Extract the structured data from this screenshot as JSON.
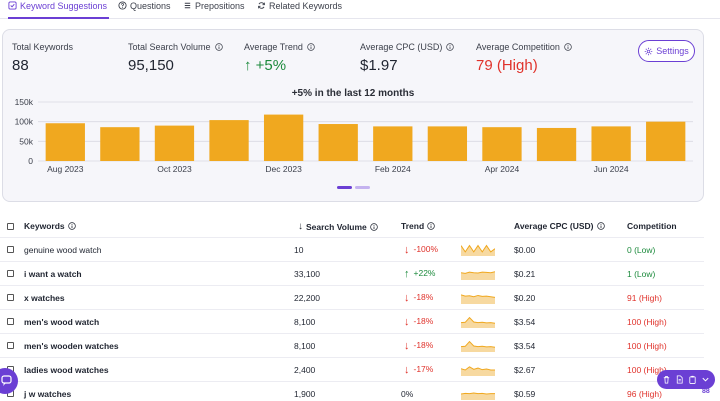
{
  "tabs": [
    {
      "label": "Keyword Suggestions",
      "icon": "checkbox-icon",
      "active": true
    },
    {
      "label": "Questions",
      "icon": "help-circle-icon",
      "active": false
    },
    {
      "label": "Prepositions",
      "icon": "list-icon",
      "active": false
    },
    {
      "label": "Related Keywords",
      "icon": "refresh-icon",
      "active": false
    }
  ],
  "summary": {
    "total_keywords": {
      "label": "Total Keywords",
      "value": "88"
    },
    "total_search_volume": {
      "label": "Total Search Volume",
      "value": "95,150"
    },
    "average_trend": {
      "label": "Average Trend",
      "value": "+5%",
      "arrow": "↑"
    },
    "average_cpc": {
      "label": "Average CPC (USD)",
      "value": "$1.97"
    },
    "average_competition": {
      "label": "Average Competition",
      "value": "79 (High)"
    },
    "settings_label": "Settings"
  },
  "colors": {
    "accent": "#6b3fd4",
    "bar": "#f0a81f",
    "positive": "#1c8a3c",
    "negative": "#e0322b"
  },
  "chart_data": {
    "type": "bar",
    "title": "+5% in the last 12 months",
    "categories": [
      "Aug 2023",
      "Sep 2023",
      "Oct 2023",
      "Nov 2023",
      "Dec 2023",
      "Jan 2024",
      "Feb 2024",
      "Mar 2024",
      "Apr 2024",
      "May 2024",
      "Jun 2024",
      "Jul 2024"
    ],
    "x_tick_labels": [
      "Aug 2023",
      "",
      "Oct 2023",
      "",
      "Dec 2023",
      "",
      "Feb 2024",
      "",
      "Apr 2024",
      "",
      "Jun 2024",
      ""
    ],
    "values": [
      96000,
      86000,
      90000,
      104000,
      118000,
      94000,
      88000,
      88000,
      86000,
      84000,
      88000,
      100000
    ],
    "ylim": [
      0,
      150000
    ],
    "y_ticks": [
      0,
      50000,
      100000,
      150000
    ],
    "y_tick_labels": [
      "0",
      "50k",
      "100k",
      "150k"
    ],
    "grid": true,
    "legend": "none"
  },
  "table": {
    "columns": {
      "keywords": "Keywords",
      "search_volume": "Search Volume",
      "search_volume_sort_arrow": "↓",
      "trend": "Trend",
      "avg_cpc": "Average CPC (USD)",
      "competition": "Competition"
    },
    "rows": [
      {
        "keyword": "genuine wood watch",
        "volume": "10",
        "trend_arrow": "↓",
        "trend": "-100%",
        "trend_dir": "down",
        "spark": [
          3,
          1,
          3,
          1,
          3,
          1,
          3,
          1,
          2
        ],
        "cpc": "$0.00",
        "competition": "0 (Low)",
        "comp_level": "low"
      },
      {
        "keyword": "i want a watch",
        "volume": "33,100",
        "trend_arrow": "↑",
        "trend": "+22%",
        "trend_dir": "up",
        "spark": [
          2,
          1.8,
          2.2,
          2,
          1.9,
          2.2,
          2.1,
          2,
          2.3
        ],
        "cpc": "$0.21",
        "competition": "1 (Low)",
        "comp_level": "low"
      },
      {
        "keyword": "x watches",
        "volume": "22,200",
        "trend_arrow": "↓",
        "trend": "-18%",
        "trend_dir": "down",
        "spark": [
          2.6,
          2.2,
          2.3,
          2,
          2.4,
          2.1,
          2.2,
          2,
          1.8
        ],
        "cpc": "$0.20",
        "competition": "91 (High)",
        "comp_level": "high"
      },
      {
        "keyword": "men's wood watch",
        "volume": "8,100",
        "trend_arrow": "↓",
        "trend": "-18%",
        "trend_dir": "down",
        "spark": [
          1.4,
          1.5,
          3,
          1.6,
          1.4,
          1.5,
          1.3,
          1.4,
          1.2
        ],
        "cpc": "$3.54",
        "competition": "100 (High)",
        "comp_level": "high"
      },
      {
        "keyword": "men's wooden watches",
        "volume": "8,100",
        "trend_arrow": "↓",
        "trend": "-18%",
        "trend_dir": "down",
        "spark": [
          1.4,
          1.5,
          3,
          1.6,
          1.4,
          1.5,
          1.3,
          1.4,
          1.2
        ],
        "cpc": "$3.54",
        "competition": "100 (High)",
        "comp_level": "high"
      },
      {
        "keyword": "ladies wood watches",
        "volume": "2,400",
        "trend_arrow": "↓",
        "trend": "-17%",
        "trend_dir": "down",
        "spark": [
          2,
          1.6,
          2.6,
          1.8,
          2.2,
          1.7,
          1.9,
          1.6,
          1.6
        ],
        "cpc": "$2.67",
        "competition": "100 (High)",
        "comp_level": "high"
      },
      {
        "keyword": "j w watches",
        "volume": "1,900",
        "trend_arrow": "",
        "trend": "0%",
        "trend_dir": "flat",
        "spark": [
          1.6,
          1.8,
          1.7,
          1.9,
          1.7,
          1.8,
          1.6,
          1.7,
          1.7
        ],
        "cpc": "$0.59",
        "competition": "96 (High)",
        "comp_level": "high"
      }
    ]
  },
  "fab": {
    "count": "88"
  }
}
